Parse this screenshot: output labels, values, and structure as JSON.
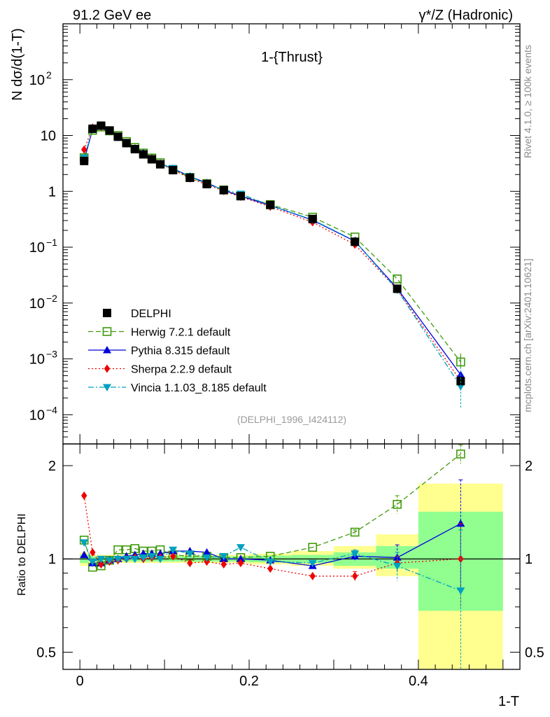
{
  "header": {
    "left": "91.2 GeV ee",
    "right": "γ*/Z (Hadronic)"
  },
  "side_labels": {
    "rivet": "Rivet 4.1.0, ≥ 100k events",
    "mcplots": "mcplots.cern.ch [arXiv:2401.10621]"
  },
  "colors": {
    "data": "#000000",
    "herwig": "#3f9b0b",
    "pythia": "#0000dd",
    "sherpa": "#ee0000",
    "vincia": "#00a0c0",
    "band_outer": "#ffff90",
    "band_inner": "#90ff90"
  },
  "chart_data": [
    {
      "type": "scatter",
      "panel": "main",
      "title": "1-{Thrust}",
      "xlabel": "",
      "ylabel": "N dσ/d(1-T)",
      "yscale": "log",
      "xlim": [
        -0.02,
        0.52
      ],
      "ylim": [
        3e-05,
        1000
      ],
      "y_ticks": [
        {
          "value": 0.0001,
          "label": "10",
          "exp": "−4"
        },
        {
          "value": 0.001,
          "label": "10",
          "exp": "−3"
        },
        {
          "value": 0.01,
          "label": "10",
          "exp": "−2"
        },
        {
          "value": 0.1,
          "label": "10",
          "exp": "−1"
        },
        {
          "value": 1,
          "label": "1",
          "exp": ""
        },
        {
          "value": 10,
          "label": "10",
          "exp": ""
        },
        {
          "value": 100,
          "label": "10",
          "exp": "2"
        }
      ],
      "annotation": "(DELPHI_1996_I424112)",
      "x": [
        0.005,
        0.015,
        0.025,
        0.035,
        0.045,
        0.055,
        0.065,
        0.075,
        0.085,
        0.095,
        0.11,
        0.13,
        0.15,
        0.17,
        0.19,
        0.225,
        0.275,
        0.325,
        0.375,
        0.45
      ],
      "series": [
        {
          "key": "data",
          "name": "DELPHI",
          "marker": "square-filled",
          "line": "none",
          "values": [
            3.5,
            13.2,
            15.0,
            12.3,
            9.5,
            7.3,
            5.7,
            4.6,
            3.75,
            3.05,
            2.4,
            1.75,
            1.35,
            1.05,
            0.82,
            0.57,
            0.32,
            0.125,
            0.018,
            0.0004
          ]
        },
        {
          "key": "herwig",
          "name": "Herwig 7.2.1 default",
          "marker": "square-open",
          "line": "dashed",
          "values": [
            4.0,
            12.4,
            14.2,
            12.1,
            10.0,
            7.8,
            6.1,
            4.85,
            3.95,
            3.25,
            2.45,
            1.78,
            1.38,
            1.06,
            0.83,
            0.58,
            0.345,
            0.152,
            0.027,
            0.00088
          ]
        },
        {
          "key": "pythia",
          "name": "Pythia 8.315 default",
          "marker": "triangle-up",
          "line": "solid",
          "values": [
            3.6,
            12.8,
            14.6,
            12.2,
            9.5,
            7.4,
            5.9,
            4.8,
            3.9,
            3.15,
            2.55,
            1.85,
            1.41,
            1.05,
            0.82,
            0.56,
            0.305,
            0.128,
            0.0183,
            0.00052
          ]
        },
        {
          "key": "sherpa",
          "name": "Sherpa 2.2.9 default",
          "marker": "diamond",
          "line": "dotted",
          "values": [
            5.6,
            13.9,
            14.4,
            12.0,
            9.4,
            7.3,
            5.8,
            4.6,
            3.8,
            3.1,
            2.45,
            1.7,
            1.33,
            1.01,
            0.8,
            0.53,
            0.28,
            0.111,
            0.0174,
            0.0004
          ]
        },
        {
          "key": "vincia",
          "name": "Vincia 1.1.03_8.185 default",
          "marker": "triangle-down",
          "line": "dashdot",
          "values": [
            4.0,
            12.9,
            15.0,
            12.2,
            9.5,
            7.3,
            5.8,
            4.7,
            3.85,
            3.05,
            2.6,
            1.85,
            1.37,
            1.07,
            0.9,
            0.56,
            0.31,
            0.13,
            0.0172,
            0.00032
          ]
        }
      ]
    },
    {
      "type": "scatter",
      "panel": "ratio",
      "xlabel": "1-T",
      "ylabel": "Ratio to DELPHI",
      "yscale": "log",
      "xlim": [
        -0.02,
        0.52
      ],
      "ylim": [
        0.44,
        2.35
      ],
      "x_ticks": [
        {
          "value": 0,
          "label": "0"
        },
        {
          "value": 0.2,
          "label": "0.2"
        },
        {
          "value": 0.4,
          "label": "0.4"
        }
      ],
      "y_ticks": [
        {
          "value": 0.5,
          "label": "0.5"
        },
        {
          "value": 1,
          "label": "1"
        },
        {
          "value": 2,
          "label": "2"
        }
      ],
      "uncertainty_bands": {
        "x_edges": [
          0,
          0.01,
          0.02,
          0.03,
          0.04,
          0.05,
          0.06,
          0.07,
          0.08,
          0.09,
          0.1,
          0.12,
          0.14,
          0.16,
          0.18,
          0.2,
          0.25,
          0.3,
          0.35,
          0.4,
          0.5
        ],
        "outer": [
          [
            0.95,
            1.05
          ],
          [
            0.97,
            1.03
          ],
          [
            0.97,
            1.03
          ],
          [
            0.97,
            1.03
          ],
          [
            0.97,
            1.03
          ],
          [
            0.97,
            1.03
          ],
          [
            0.97,
            1.03
          ],
          [
            0.97,
            1.03
          ],
          [
            0.97,
            1.03
          ],
          [
            0.97,
            1.03
          ],
          [
            0.97,
            1.03
          ],
          [
            0.97,
            1.03
          ],
          [
            0.97,
            1.03
          ],
          [
            0.97,
            1.03
          ],
          [
            0.97,
            1.03
          ],
          [
            0.96,
            1.04
          ],
          [
            0.95,
            1.06
          ],
          [
            0.93,
            1.1
          ],
          [
            0.88,
            1.2
          ],
          [
            0.41,
            1.75
          ]
        ],
        "inner": [
          [
            0.97,
            1.03
          ],
          [
            0.98,
            1.02
          ],
          [
            0.98,
            1.02
          ],
          [
            0.98,
            1.02
          ],
          [
            0.98,
            1.02
          ],
          [
            0.98,
            1.02
          ],
          [
            0.98,
            1.02
          ],
          [
            0.98,
            1.02
          ],
          [
            0.98,
            1.02
          ],
          [
            0.98,
            1.02
          ],
          [
            0.98,
            1.02
          ],
          [
            0.98,
            1.02
          ],
          [
            0.98,
            1.02
          ],
          [
            0.98,
            1.02
          ],
          [
            0.98,
            1.02
          ],
          [
            0.975,
            1.025
          ],
          [
            0.97,
            1.03
          ],
          [
            0.95,
            1.05
          ],
          [
            0.93,
            1.1
          ],
          [
            0.68,
            1.42
          ]
        ]
      },
      "series": [
        {
          "key": "herwig",
          "name": "Herwig 7.2.1 default",
          "values": [
            1.15,
            0.94,
            0.95,
            0.99,
            1.07,
            1.07,
            1.08,
            1.06,
            1.06,
            1.07,
            1.03,
            1.02,
            1.02,
            1.01,
            1.01,
            1.02,
            1.09,
            1.22,
            1.5,
            2.18
          ],
          "errors": [
            0,
            0,
            0,
            0,
            0,
            0,
            0,
            0,
            0,
            0,
            0,
            0,
            0,
            0,
            0,
            0,
            0,
            0.02,
            0.1,
            0.15
          ]
        },
        {
          "key": "pythia",
          "name": "Pythia 8.315 default",
          "values": [
            1.03,
            0.97,
            0.97,
            0.99,
            1.0,
            1.02,
            1.03,
            1.04,
            1.04,
            1.04,
            1.06,
            1.06,
            1.05,
            1.0,
            1.0,
            0.99,
            0.95,
            1.02,
            1.01,
            1.3
          ],
          "errors": [
            0,
            0,
            0,
            0,
            0,
            0,
            0,
            0,
            0,
            0,
            0,
            0,
            0,
            0,
            0,
            0,
            0,
            0.03,
            0.1,
            0.5
          ]
        },
        {
          "key": "sherpa",
          "name": "Sherpa 2.2.9 default",
          "values": [
            1.6,
            1.05,
            0.96,
            0.98,
            0.99,
            1.0,
            1.01,
            1.0,
            1.01,
            1.01,
            1.02,
            0.97,
            0.98,
            0.96,
            0.97,
            0.93,
            0.88,
            0.88,
            0.97,
            1.0
          ],
          "errors": [
            0,
            0,
            0,
            0,
            0,
            0,
            0,
            0,
            0,
            0,
            0,
            0,
            0,
            0,
            0,
            0,
            0,
            0.03,
            0.05,
            0.3
          ]
        },
        {
          "key": "vincia",
          "name": "Vincia 1.1.03_8.185 default",
          "values": [
            1.13,
            0.98,
            1.0,
            0.99,
            1.0,
            1.0,
            1.0,
            1.01,
            1.02,
            1.0,
            1.07,
            1.04,
            1.01,
            1.02,
            1.09,
            0.98,
            0.97,
            1.04,
            0.95,
            0.79
          ],
          "errors": [
            0,
            0,
            0,
            0,
            0,
            0,
            0,
            0,
            0,
            0,
            0,
            0,
            0,
            0,
            0,
            0,
            0,
            0.03,
            0.1,
            0.45
          ]
        }
      ]
    }
  ]
}
